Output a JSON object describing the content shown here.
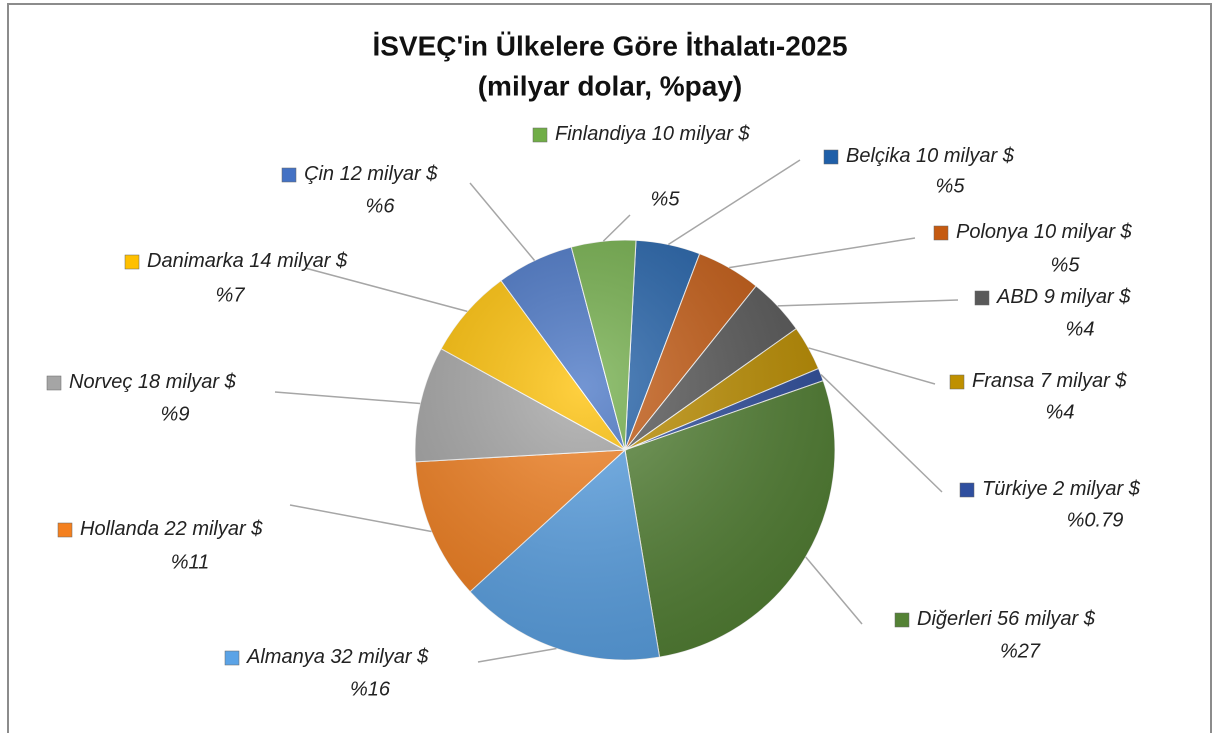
{
  "chart_data": {
    "type": "pie",
    "title": "İSVEÇ'in Ülkelere Göre İthalatı-2025",
    "subtitle": "(milyar dolar, %pay)",
    "categories": [
      "Belçika",
      "Polonya",
      "ABD",
      "Fransa",
      "Türkiye",
      "Diğerleri",
      "Almanya",
      "Hollanda",
      "Norveç",
      "Danimarka",
      "Çin",
      "Finlandiya"
    ],
    "values": [
      10,
      10,
      9,
      7,
      2,
      56,
      32,
      22,
      18,
      14,
      12,
      10
    ],
    "value_labels": [
      "10 milyar $",
      "10 milyar $",
      "9 milyar $",
      "7 milyar $",
      "2 milyar $",
      "56 milyar $",
      "32 milyar $",
      "22 milyar $",
      "18 milyar $",
      "14 milyar $",
      "12 milyar $",
      "10 milyar $"
    ],
    "shares": [
      5,
      5,
      4,
      4,
      0.79,
      27,
      16,
      11,
      9,
      7,
      6,
      5
    ],
    "share_labels": [
      "%5",
      "%5",
      "%4",
      "%4",
      "%0.79",
      "%27",
      "%16",
      "%11",
      "%9",
      "%7",
      "%6",
      "%5"
    ],
    "colors": [
      "#1f5fa8",
      "#c55a11",
      "#595959",
      "#bf9000",
      "#2f4f9f",
      "#548235",
      "#5ba3e6",
      "#f4801f",
      "#a5a5a5",
      "#ffc000",
      "#4472c4",
      "#70ad47"
    ]
  }
}
